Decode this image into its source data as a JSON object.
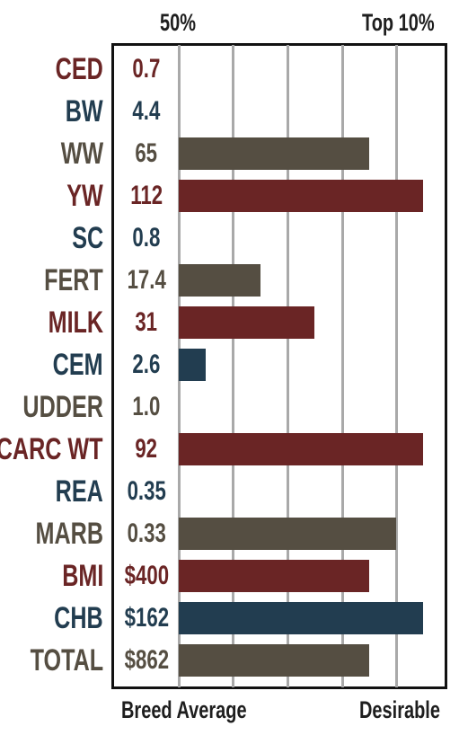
{
  "header": {
    "left_label": "50%",
    "right_label": "Top 10%"
  },
  "footer": {
    "left_label": "Breed Average",
    "right_label": "Desirable"
  },
  "colors": {
    "red": "#6a2525",
    "blue": "#223d50",
    "gray": "#554e42",
    "grid": "#a9a9a9"
  },
  "chart_data": {
    "type": "bar",
    "orientation": "horizontal",
    "percentile_levels": [
      "50%",
      "Top 10%"
    ],
    "categories": [
      "CED",
      "BW",
      "WW",
      "YW",
      "SC",
      "FERT",
      "MILK",
      "CEM",
      "UDDER",
      "CARC WT",
      "REA",
      "MARB",
      "BMI",
      "CHB",
      "TOTAL"
    ],
    "value_labels": [
      "0.7",
      "4.4",
      "65",
      "112",
      "0.8",
      "17.4",
      "31",
      "2.6",
      "1.0",
      "92",
      "0.35",
      "0.33",
      "$400",
      "$162",
      "$862"
    ],
    "label_colors": [
      "red",
      "blue",
      "gray",
      "red",
      "blue",
      "gray",
      "red",
      "blue",
      "gray",
      "red",
      "blue",
      "gray",
      "red",
      "blue",
      "gray"
    ],
    "bar_values": [
      0,
      0,
      3.5,
      4.5,
      0,
      1.5,
      2.5,
      0.5,
      0,
      4.5,
      0,
      4.0,
      3.5,
      4.5,
      3.5
    ],
    "bar_range": [
      0,
      5
    ],
    "grid": true
  }
}
